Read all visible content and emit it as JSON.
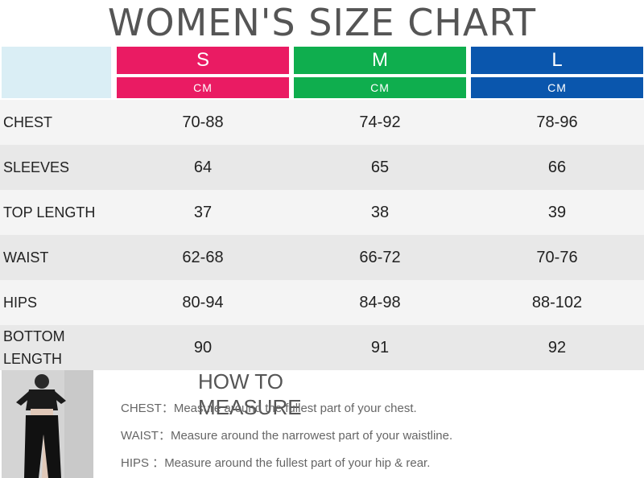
{
  "title": "WOMEN'S SIZE CHART",
  "colors": {
    "size_s": "#ea1b63",
    "size_m": "#0fae4e",
    "size_l": "#0a56ad",
    "header_blank": "#daeef5"
  },
  "sizes": [
    {
      "label": "S",
      "unit": "CM"
    },
    {
      "label": "M",
      "unit": "CM"
    },
    {
      "label": "L",
      "unit": "CM"
    }
  ],
  "rows": [
    {
      "label": "CHEST",
      "values": [
        "70-88",
        "74-92",
        "78-96"
      ]
    },
    {
      "label": "SLEEVES",
      "values": [
        "64",
        "65",
        "66"
      ]
    },
    {
      "label": "TOP LENGTH",
      "values": [
        "37",
        "38",
        "39"
      ]
    },
    {
      "label": "WAIST",
      "values": [
        "62-68",
        "66-72",
        "70-76"
      ]
    },
    {
      "label": "HIPS",
      "values": [
        "80-94",
        "84-98",
        "88-102"
      ]
    },
    {
      "label": "BOTTOM LENGTH",
      "values": [
        "90",
        "91",
        "92"
      ]
    }
  ],
  "how_to_measure": {
    "title": "HOW TO MEASURE",
    "items": [
      {
        "key": "CHEST：",
        "text": "Measure around the fullest part of your chest."
      },
      {
        "key": "WAIST：",
        "text": "Measure around the narrowest part of your waistline."
      },
      {
        "key": "HIPS  ：",
        "text": "Measure around the fullest part of your hip & rear."
      }
    ]
  },
  "photo": {
    "icon": "model-photo"
  }
}
